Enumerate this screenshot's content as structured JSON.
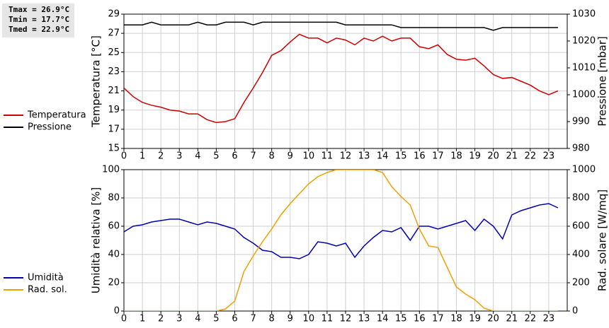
{
  "chart_data": [
    {
      "type": "line",
      "annotations": [
        "Tmax = 26.9°C",
        "Tmin = 17.7°C",
        "Tmed = 22.9°C"
      ],
      "y_label": "Temperatura [°C]",
      "y2_label": "Pressione [mbar]",
      "x": [
        0,
        0.5,
        1,
        1.5,
        2,
        2.5,
        3,
        3.5,
        4,
        4.5,
        5,
        5.5,
        6,
        6.5,
        7,
        7.5,
        8,
        8.5,
        9,
        9.5,
        10,
        10.5,
        11,
        11.5,
        12,
        12.5,
        13,
        13.5,
        14,
        14.5,
        15,
        15.5,
        16,
        16.5,
        17,
        17.5,
        18,
        18.5,
        19,
        19.5,
        20,
        20.5,
        21,
        21.5,
        22,
        22.5,
        23,
        23.5
      ],
      "xlim": [
        0,
        24
      ],
      "xticks": [
        0,
        1,
        2,
        3,
        4,
        5,
        6,
        7,
        8,
        9,
        10,
        11,
        12,
        13,
        14,
        15,
        16,
        17,
        18,
        19,
        20,
        21,
        22,
        23
      ],
      "ylim": [
        15,
        29
      ],
      "yticks": [
        15,
        17,
        19,
        21,
        23,
        25,
        27,
        29
      ],
      "y2lim": [
        980,
        1030
      ],
      "y2ticks": [
        980,
        990,
        1000,
        1010,
        1020,
        1030
      ],
      "grid": true,
      "legend": "left",
      "series": [
        {
          "name": "Temperatura",
          "color": "#d00000",
          "values": [
            21.3,
            20.4,
            19.8,
            19.5,
            19.3,
            19.0,
            18.9,
            18.6,
            18.6,
            18.0,
            17.7,
            17.8,
            18.1,
            19.8,
            21.3,
            22.9,
            24.7,
            25.2,
            26.1,
            26.9,
            26.5,
            26.5,
            26.0,
            26.5,
            26.3,
            25.8,
            26.5,
            26.2,
            26.7,
            26.2,
            26.5,
            26.5,
            25.6,
            25.4,
            25.8,
            24.8,
            24.3,
            24.2,
            24.4,
            23.6,
            22.7,
            22.3,
            22.4,
            22.0,
            21.6,
            21.0,
            20.6,
            21.0
          ]
        },
        {
          "name": "Pressione",
          "color": "#000000",
          "axis": "y2",
          "values": [
            1026,
            1026,
            1026,
            1027,
            1026,
            1026,
            1026,
            1026,
            1027,
            1026,
            1026,
            1027,
            1027,
            1027,
            1026,
            1027,
            1027,
            1027,
            1027,
            1027,
            1027,
            1027,
            1027,
            1027,
            1026,
            1026,
            1026,
            1026,
            1026,
            1026,
            1025,
            1025,
            1025,
            1025,
            1025,
            1025,
            1025,
            1025,
            1025,
            1025,
            1024,
            1025,
            1025,
            1025,
            1025,
            1025,
            1025,
            1025
          ]
        }
      ]
    },
    {
      "type": "line",
      "y_label": "Umidità relativa [%]",
      "y2_label": "Rad. solare [W/mq]",
      "x": [
        0,
        0.5,
        1,
        1.5,
        2,
        2.5,
        3,
        3.5,
        4,
        4.5,
        5,
        5.5,
        6,
        6.5,
        7,
        7.5,
        8,
        8.5,
        9,
        9.5,
        10,
        10.5,
        11,
        11.5,
        12,
        12.5,
        13,
        13.5,
        14,
        14.5,
        15,
        15.5,
        16,
        16.5,
        17,
        17.5,
        18,
        18.5,
        19,
        19.5,
        20,
        20.5,
        21,
        21.5,
        22,
        22.5,
        23,
        23.5
      ],
      "xlim": [
        0,
        24
      ],
      "xticks": [
        0,
        1,
        2,
        3,
        4,
        5,
        6,
        7,
        8,
        9,
        10,
        11,
        12,
        13,
        14,
        15,
        16,
        17,
        18,
        19,
        20,
        21,
        22,
        23
      ],
      "ylim": [
        0,
        100
      ],
      "yticks": [
        0,
        20,
        40,
        60,
        80,
        100
      ],
      "y2lim": [
        0,
        1000
      ],
      "y2ticks": [
        0,
        200,
        400,
        600,
        800,
        1000
      ],
      "grid": true,
      "legend": "left",
      "series": [
        {
          "name": "Umidità",
          "color": "#0000b0",
          "values": [
            56,
            60,
            61,
            63,
            64,
            65,
            65,
            63,
            61,
            63,
            62,
            60,
            58,
            52,
            48,
            43,
            42,
            38,
            38,
            37,
            40,
            49,
            48,
            46,
            48,
            38,
            46,
            52,
            57,
            56,
            59,
            50,
            60,
            60,
            58,
            60,
            62,
            64,
            57,
            65,
            60,
            51,
            68,
            71,
            73,
            75,
            76,
            73
          ]
        },
        {
          "name": "Rad. sol.",
          "color": "#f0a000",
          "axis": "y2",
          "values": [
            0,
            0,
            0,
            0,
            0,
            0,
            0,
            0,
            0,
            0,
            0,
            15,
            70,
            280,
            390,
            490,
            580,
            680,
            760,
            830,
            900,
            950,
            980,
            1000,
            1000,
            1000,
            1000,
            1000,
            980,
            880,
            810,
            750,
            580,
            460,
            450,
            310,
            170,
            120,
            80,
            20,
            0,
            0,
            0,
            0,
            0,
            0,
            0,
            0
          ]
        }
      ]
    }
  ]
}
